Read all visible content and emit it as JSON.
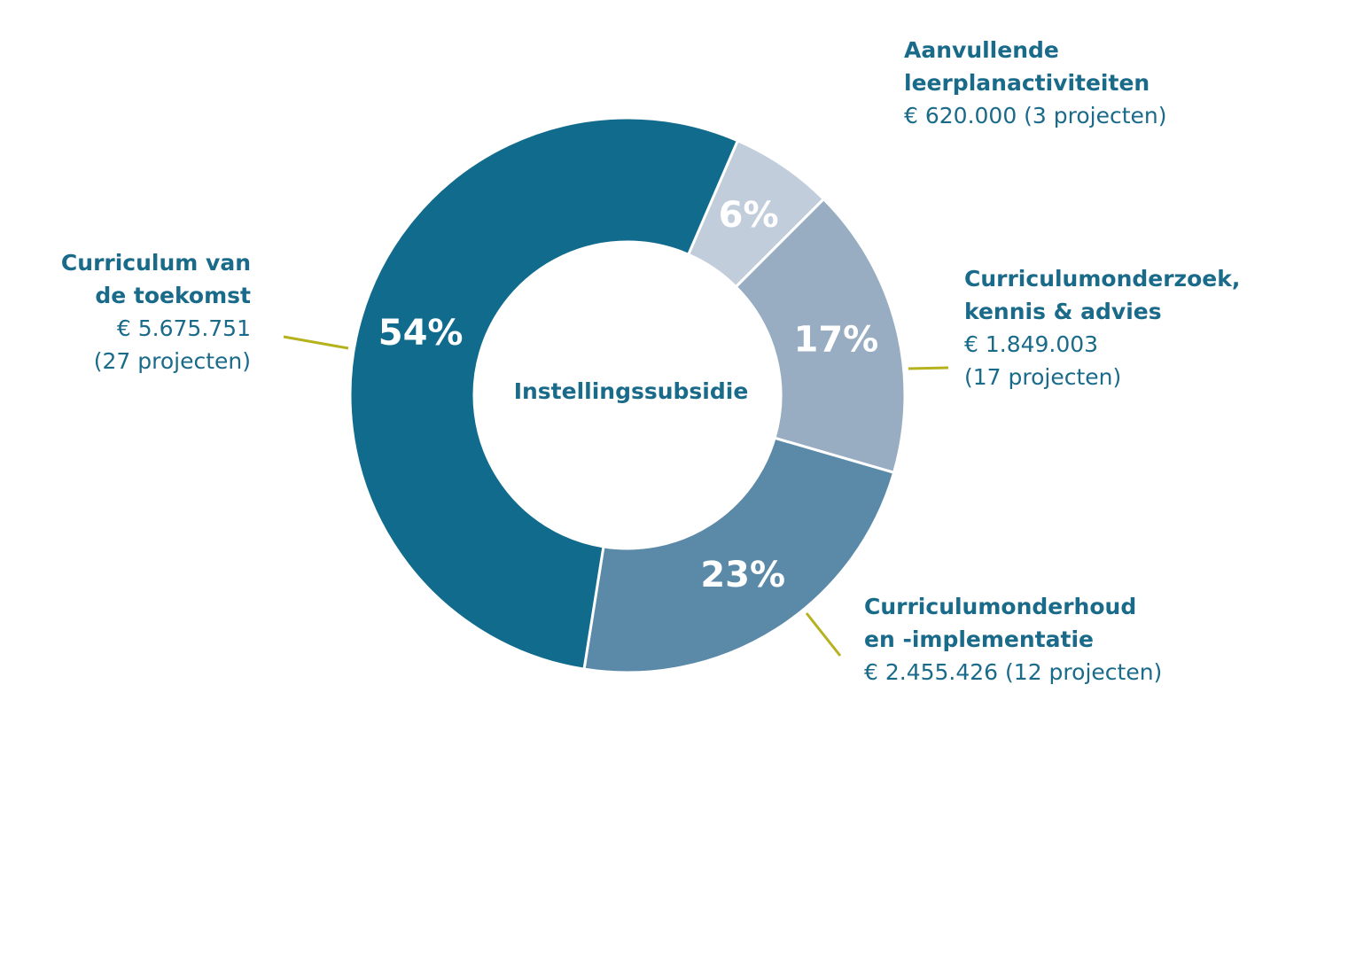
{
  "chart_data": {
    "type": "donut",
    "center_label": "Instellingssubsidie",
    "categories": [
      [
        "Aanvullende",
        "leerplanactiviteiten"
      ],
      [
        "Curriculumonderzoek,",
        "kennis & advies"
      ],
      [
        "Curriculumonderhoud",
        "en -implementatie"
      ],
      [
        "Curriculum van",
        "de toekomst"
      ]
    ],
    "amounts": [
      [
        "€ 620.000 (3 projecten)"
      ],
      [
        "€ 1.849.003",
        "(17 projecten)"
      ],
      [
        "€ 2.455.426 (12 projecten)"
      ],
      [
        "€ 5.675.751",
        "(27 projecten)"
      ]
    ],
    "values": [
      6,
      17,
      23,
      54
    ],
    "value_labels": [
      "6%",
      "17%",
      "23%",
      "54%"
    ],
    "colors": [
      "#c2cddb",
      "#98adc1",
      "#5b8aa8",
      "#116b8c"
    ]
  }
}
